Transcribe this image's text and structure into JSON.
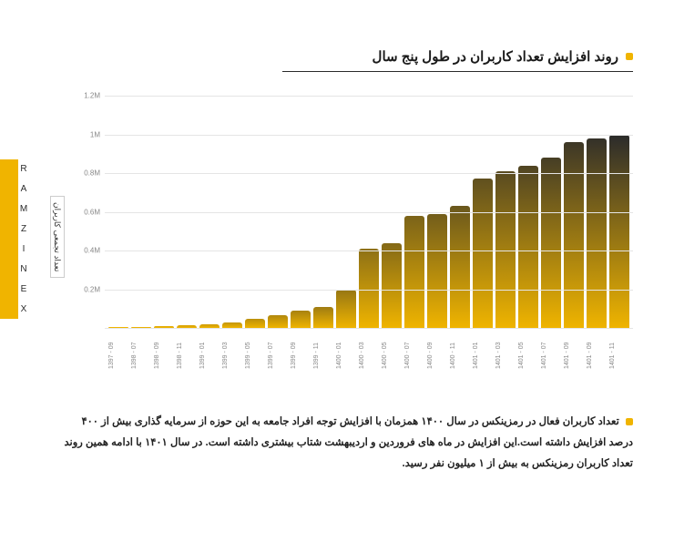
{
  "brand": "RAMZINEX",
  "title": "روند افزایش تعداد کاربران در طول پنج سال",
  "y_axis_label": "تعداد تجمعی کاربران",
  "chart": {
    "type": "bar",
    "ylim": [
      0,
      1200000
    ],
    "y_ticks": [
      {
        "v": 0,
        "label": ""
      },
      {
        "v": 200000,
        "label": "0.2M"
      },
      {
        "v": 400000,
        "label": "0.4M"
      },
      {
        "v": 600000,
        "label": "0.6M"
      },
      {
        "v": 800000,
        "label": "0.8M"
      },
      {
        "v": 1000000,
        "label": "1M"
      },
      {
        "v": 1200000,
        "label": "1.2M"
      }
    ],
    "grid_color": "#e5e5e5",
    "background_color": "#ffffff",
    "bar_gradient_from": "#efb400",
    "bar_gradient_to": "#2b2b2b",
    "data": [
      {
        "label": "1397 - 09",
        "value": 5000
      },
      {
        "label": "1398 - 07",
        "value": 7000
      },
      {
        "label": "1398 - 09",
        "value": 9000
      },
      {
        "label": "1398 - 11",
        "value": 12000
      },
      {
        "label": "1399 - 01",
        "value": 18000
      },
      {
        "label": "1399 - 03",
        "value": 30000
      },
      {
        "label": "1399 - 05",
        "value": 45000
      },
      {
        "label": "1399 - 07",
        "value": 65000
      },
      {
        "label": "1399 - 09",
        "value": 90000
      },
      {
        "label": "1399 - 11",
        "value": 110000
      },
      {
        "label": "1400 - 01",
        "value": 200000
      },
      {
        "label": "1400 - 03",
        "value": 410000
      },
      {
        "label": "1400 - 05",
        "value": 440000
      },
      {
        "label": "1400 - 07",
        "value": 580000
      },
      {
        "label": "1400 - 09",
        "value": 590000
      },
      {
        "label": "1400 - 11",
        "value": 630000
      },
      {
        "label": "1401 - 01",
        "value": 770000
      },
      {
        "label": "1401 - 03",
        "value": 810000
      },
      {
        "label": "1401 - 05",
        "value": 840000
      },
      {
        "label": "1401 - 07",
        "value": 880000
      },
      {
        "label": "1401 - 09",
        "value": 960000
      },
      {
        "label": "1401 - 09",
        "value": 980000
      },
      {
        "label": "1401 - 11",
        "value": 1000000
      }
    ]
  },
  "description": "تعداد کاربران فعال در رمزینکس در سال ۱۴۰۰ همزمان با افزایش توجه افراد جامعه به این حوزه از سرمایه گذاری بیش از ۴۰۰ درصد افزایش داشته است.این افزایش در ماه های فروردین و اردیبهشت شتاب بیشتری داشته است. در سال ۱۴۰۱ با ادامه همین روند تعداد کاربران رمزینکس به بیش از ۱ میلیون نفر رسید."
}
